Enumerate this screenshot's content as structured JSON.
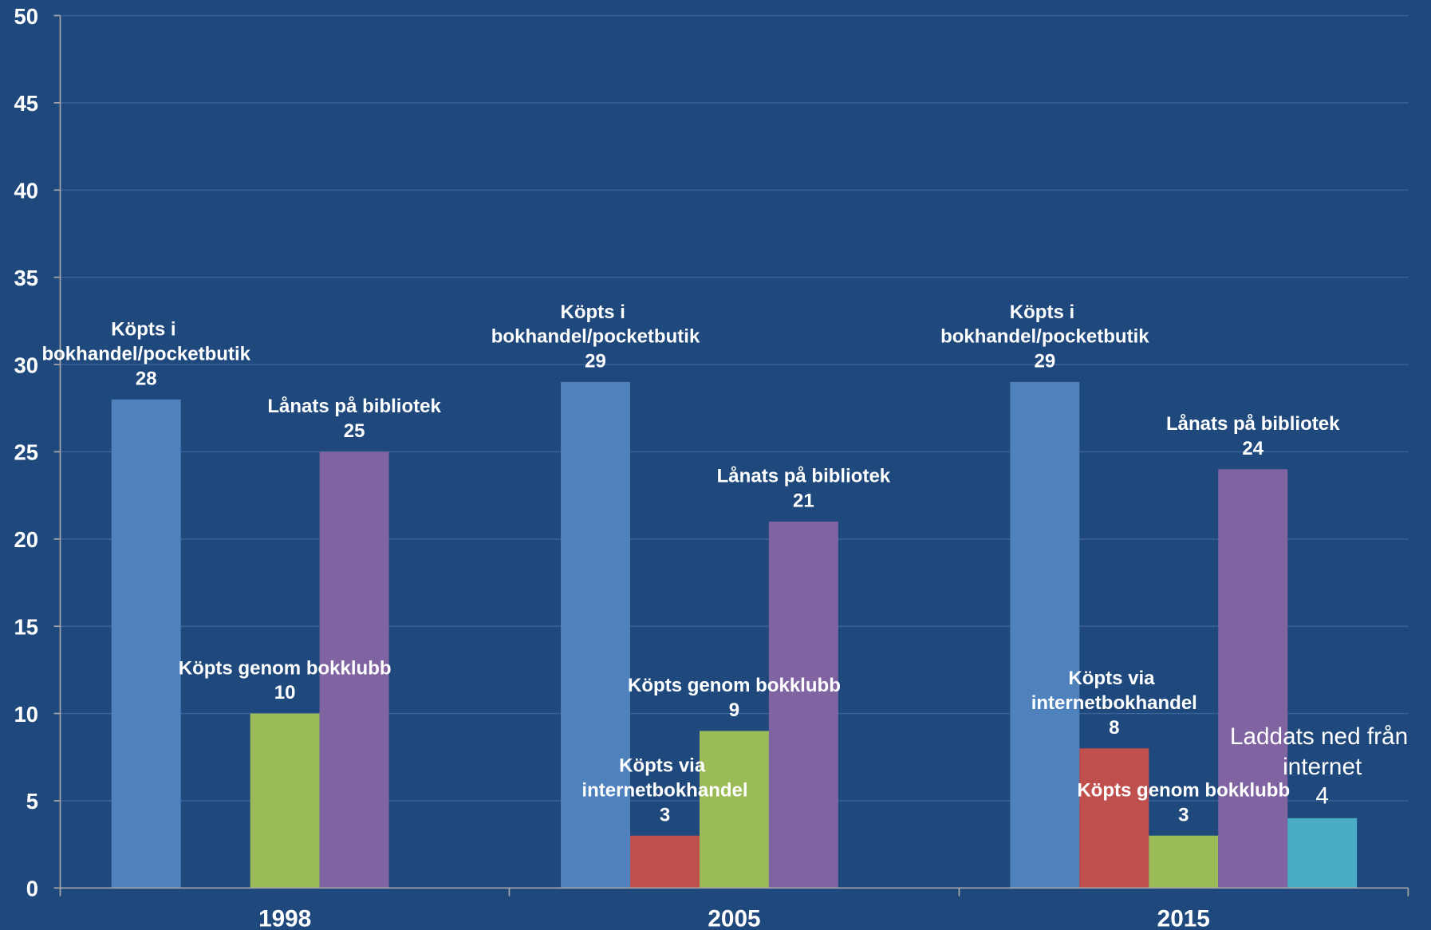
{
  "chart_data": {
    "type": "bar",
    "categories": [
      "1998",
      "2005",
      "2015"
    ],
    "series": [
      {
        "name": "Köpts i bokhandel/pocketbutik",
        "color": "#4f81bd",
        "values": [
          28,
          29,
          29
        ]
      },
      {
        "name": "Köpts via internetbokhandel",
        "color": "#c0504d",
        "values": [
          null,
          3,
          8
        ]
      },
      {
        "name": "Köpts genom bokklubb",
        "color": "#9bbb59",
        "values": [
          10,
          9,
          3
        ]
      },
      {
        "name": "Lånats på bibliotek",
        "color": "#8064a2",
        "values": [
          25,
          21,
          24
        ]
      },
      {
        "name": "Laddats ned från internet",
        "color": "#4bacc6",
        "values": [
          null,
          null,
          4
        ]
      }
    ],
    "ylim": [
      0,
      50
    ],
    "yticks": [
      0,
      5,
      10,
      15,
      20,
      25,
      30,
      35,
      40,
      45,
      50
    ],
    "grid": true
  }
}
